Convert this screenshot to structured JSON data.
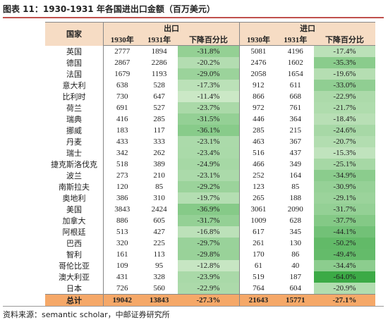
{
  "title": "图表 11：1930-1931 年各国进出口金额（百万美元）",
  "table": {
    "header": {
      "country": "国家",
      "export": "出口",
      "import": "进口",
      "sub": [
        "1930年",
        "1931年",
        "下降百分比",
        "1930年",
        "1931年",
        "下降百分比"
      ]
    },
    "rows": [
      [
        "英国",
        2777,
        1894,
        "-31.8%",
        5081,
        4196,
        "-17.4%"
      ],
      [
        "德国",
        2867,
        2286,
        "-20.2%",
        2476,
        1602,
        "-35.3%"
      ],
      [
        "法国",
        1679,
        1193,
        "-29.0%",
        2058,
        1654,
        "-19.6%"
      ],
      [
        "意大利",
        638,
        528,
        "-17.3%",
        912,
        611,
        "-33.0%"
      ],
      [
        "比利时",
        730,
        647,
        "-11.4%",
        866,
        668,
        "-22.9%"
      ],
      [
        "荷兰",
        691,
        527,
        "-23.7%",
        972,
        761,
        "-21.7%"
      ],
      [
        "瑞典",
        416,
        285,
        "-31.5%",
        446,
        364,
        "-18.4%"
      ],
      [
        "挪威",
        183,
        117,
        "-36.1%",
        285,
        215,
        "-24.6%"
      ],
      [
        "丹麦",
        433,
        333,
        "-23.1%",
        463,
        367,
        "-20.7%"
      ],
      [
        "瑞士",
        342,
        262,
        "-23.4%",
        516,
        437,
        "-15.3%"
      ],
      [
        "捷克斯洛伐克",
        518,
        389,
        "-24.9%",
        466,
        349,
        "-25.1%"
      ],
      [
        "波兰",
        273,
        210,
        "-23.1%",
        252,
        164,
        "-34.9%"
      ],
      [
        "南斯拉夫",
        120,
        85,
        "-29.2%",
        123,
        85,
        "-30.9%"
      ],
      [
        "奥地利",
        386,
        310,
        "-19.7%",
        265,
        188,
        "-29.1%"
      ],
      [
        "美国",
        3843,
        2424,
        "-36.9%",
        3061,
        2090,
        "-31.7%"
      ],
      [
        "加拿大",
        886,
        605,
        "-31.7%",
        1009,
        628,
        "-37.7%"
      ],
      [
        "阿根廷",
        513,
        427,
        "-16.8%",
        617,
        345,
        "-44.1%"
      ],
      [
        "巴西",
        320,
        225,
        "-29.7%",
        261,
        130,
        "-50.2%"
      ],
      [
        "智利",
        161,
        113,
        "-29.8%",
        170,
        86,
        "-49.4%"
      ],
      [
        "哥伦比亚",
        109,
        95,
        "-12.8%",
        61,
        40,
        "-34.4%"
      ],
      [
        "澳大利亚",
        431,
        328,
        "-23.9%",
        519,
        187,
        "-64.0%"
      ],
      [
        "日本",
        726,
        560,
        "-22.9%",
        764,
        604,
        "-20.9%"
      ]
    ],
    "total": [
      "总计",
      19042,
      13843,
      "-27.3%",
      21643,
      15771,
      "-27.1%"
    ]
  },
  "source": "资料来源：semantic scholar，中邮证券研究所"
}
